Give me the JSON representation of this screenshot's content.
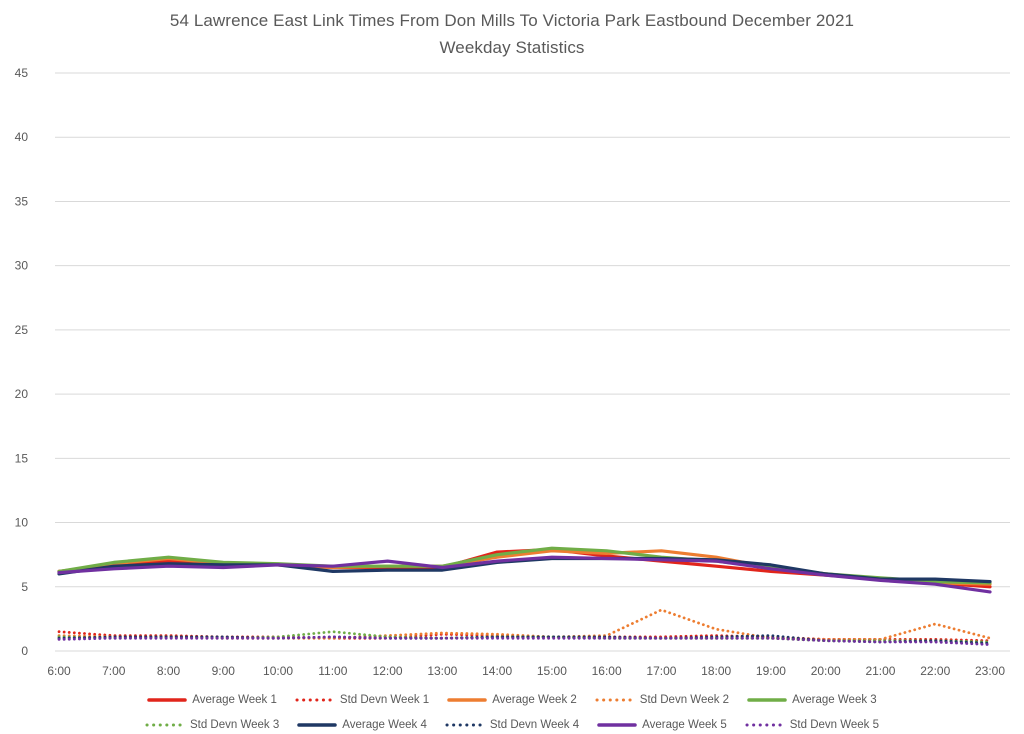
{
  "title": {
    "line1": "54 Lawrence East Link Times From Don Mills To Victoria Park Eastbound December 2021",
    "line2": "Weekday Statistics"
  },
  "colors": {
    "week1": "#E1251B",
    "week2": "#ED7D31",
    "week3": "#70AD47",
    "week4": "#1F3864",
    "week5": "#7030A0",
    "grid": "#D9D9D9",
    "axis_text": "#595959",
    "title_text": "#595959",
    "legend_text": "#595959"
  },
  "chart_data": {
    "type": "line",
    "x": [
      "6:00",
      "7:00",
      "8:00",
      "9:00",
      "10:00",
      "11:00",
      "12:00",
      "13:00",
      "14:00",
      "15:00",
      "16:00",
      "17:00",
      "18:00",
      "19:00",
      "20:00",
      "21:00",
      "22:00",
      "23:00"
    ],
    "xlabel": "",
    "ylabel": "",
    "ylim": [
      0,
      45
    ],
    "ytick_step": 5,
    "grid": true,
    "legend_position": "bottom",
    "series": [
      {
        "name": "Average Week 1",
        "style": "solid",
        "color_key": "week1",
        "values": [
          6.2,
          6.6,
          7.0,
          6.7,
          6.7,
          6.5,
          6.5,
          6.5,
          7.7,
          7.9,
          7.4,
          7.0,
          6.6,
          6.2,
          5.9,
          5.6,
          5.3,
          5.0
        ]
      },
      {
        "name": "Std Devn Week 1",
        "style": "dotted",
        "color_key": "week1",
        "values": [
          1.5,
          1.2,
          1.2,
          1.1,
          1.1,
          1.0,
          1.0,
          1.3,
          1.2,
          1.1,
          1.1,
          1.1,
          1.2,
          1.1,
          0.9,
          0.9,
          0.9,
          0.8
        ]
      },
      {
        "name": "Average Week 2",
        "style": "solid",
        "color_key": "week2",
        "values": [
          6.2,
          6.8,
          7.2,
          6.8,
          6.7,
          6.5,
          6.6,
          6.6,
          7.3,
          7.8,
          7.6,
          7.8,
          7.3,
          6.5,
          6.0,
          5.6,
          5.3,
          5.2
        ]
      },
      {
        "name": "Std Devn Week 2",
        "style": "dotted",
        "color_key": "week2",
        "values": [
          1.2,
          1.1,
          1.1,
          1.0,
          1.0,
          1.0,
          1.2,
          1.4,
          1.3,
          1.1,
          1.2,
          3.2,
          1.7,
          1.0,
          0.9,
          0.9,
          2.1,
          1.0
        ]
      },
      {
        "name": "Average Week 3",
        "style": "solid",
        "color_key": "week3",
        "values": [
          6.2,
          6.9,
          7.3,
          6.9,
          6.8,
          6.6,
          6.6,
          6.6,
          7.5,
          8.0,
          7.8,
          7.3,
          7.0,
          6.5,
          6.0,
          5.7,
          5.4,
          5.3
        ]
      },
      {
        "name": "Std Devn Week 3",
        "style": "dotted",
        "color_key": "week3",
        "values": [
          1.1,
          1.0,
          1.1,
          1.0,
          1.1,
          1.5,
          1.1,
          1.0,
          1.1,
          1.1,
          1.0,
          1.0,
          1.0,
          1.0,
          0.8,
          0.8,
          0.8,
          0.7
        ]
      },
      {
        "name": "Average Week 4",
        "style": "solid",
        "color_key": "week4",
        "values": [
          6.0,
          6.6,
          6.8,
          6.7,
          6.7,
          6.2,
          6.3,
          6.3,
          6.9,
          7.2,
          7.2,
          7.2,
          7.1,
          6.7,
          6.0,
          5.6,
          5.6,
          5.4
        ]
      },
      {
        "name": "Std Devn Week 4",
        "style": "dotted",
        "color_key": "week4",
        "values": [
          1.0,
          1.1,
          1.1,
          1.1,
          1.0,
          1.1,
          1.0,
          1.0,
          1.1,
          1.1,
          1.1,
          1.0,
          1.1,
          1.2,
          0.8,
          0.7,
          0.8,
          0.6
        ]
      },
      {
        "name": "Average Week 5",
        "style": "solid",
        "color_key": "week5",
        "values": [
          6.1,
          6.4,
          6.6,
          6.5,
          6.7,
          6.6,
          7.0,
          6.5,
          7.0,
          7.3,
          7.2,
          7.1,
          7.0,
          6.4,
          5.9,
          5.5,
          5.2,
          4.6
        ]
      },
      {
        "name": "Std Devn Week 5",
        "style": "dotted",
        "color_key": "week5",
        "values": [
          0.9,
          1.0,
          1.0,
          1.0,
          1.0,
          1.1,
          1.0,
          1.0,
          1.0,
          1.0,
          1.0,
          1.0,
          1.0,
          1.0,
          0.8,
          0.7,
          0.7,
          0.5
        ]
      }
    ]
  }
}
